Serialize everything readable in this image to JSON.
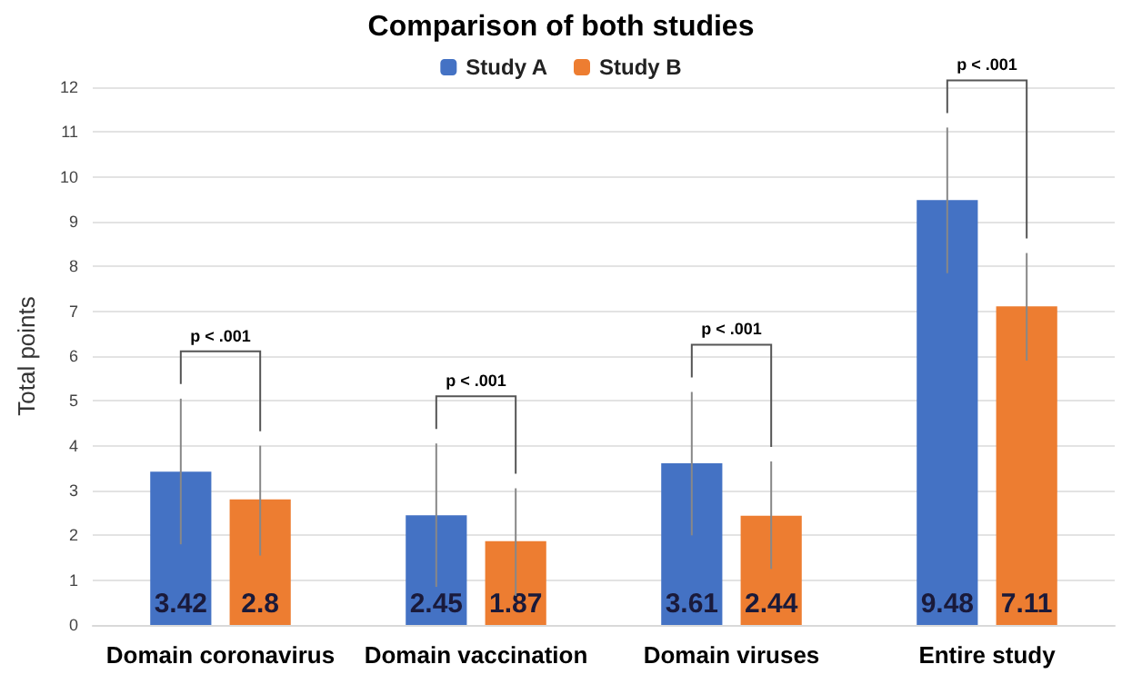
{
  "chart_data": {
    "type": "bar",
    "title": "Comparison of both studies",
    "ylabel": "Total points",
    "categories": [
      "Domain coronavirus",
      "Domain vaccination",
      "Domain viruses",
      "Entire study"
    ],
    "series": [
      {
        "name": "Study A",
        "color": "#4472c4",
        "values": [
          3.42,
          2.45,
          3.61,
          9.48
        ],
        "errors": [
          [
            1.8,
            5.05
          ],
          [
            0.85,
            4.05
          ],
          [
            2.0,
            5.2
          ],
          [
            7.85,
            11.1
          ]
        ]
      },
      {
        "name": "Study B",
        "color": "#ed7d31",
        "values": [
          2.8,
          1.87,
          2.44,
          7.11
        ],
        "errors": [
          [
            1.55,
            4.0
          ],
          [
            0.65,
            3.05
          ],
          [
            1.25,
            3.65
          ],
          [
            5.9,
            8.3
          ]
        ]
      }
    ],
    "ylim": [
      0,
      12
    ],
    "yticks": [
      0,
      1,
      2,
      3,
      4,
      5,
      6,
      7,
      8,
      9,
      10,
      11,
      12
    ],
    "annotations": [
      "p < .001",
      "p < .001",
      "p < .001",
      "p < .001"
    ],
    "data_labels": true,
    "grid": "y",
    "legend": "top"
  }
}
